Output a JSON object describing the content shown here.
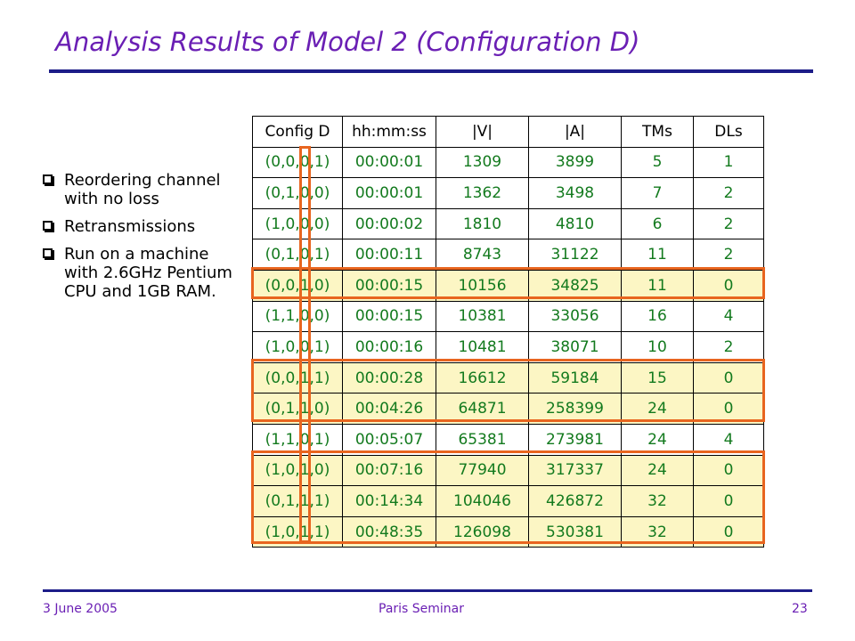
{
  "slide": {
    "title": "Analysis Results of Model 2 (Configuration D)",
    "bullets": [
      "Reordering channel with no loss",
      "Retransmissions",
      "Run on a machine with 2.6GHz Pentium CPU and 1GB RAM."
    ],
    "footer": {
      "date": "3 June 2005",
      "event": "Paris Seminar",
      "page": "23"
    }
  },
  "table": {
    "headers": [
      "Config D",
      "hh:mm:ss",
      "|V|",
      "|A|",
      "TMs",
      "DLs"
    ],
    "rows": [
      [
        "(0,0,0,1)",
        "00:00:01",
        "1309",
        "3899",
        "5",
        "1"
      ],
      [
        "(0,1,0,0)",
        "00:00:01",
        "1362",
        "3498",
        "7",
        "2"
      ],
      [
        "(1,0,0,0)",
        "00:00:02",
        "1810",
        "4810",
        "6",
        "2"
      ],
      [
        "(0,1,0,1)",
        "00:00:11",
        "8743",
        "31122",
        "11",
        "2"
      ],
      [
        "(0,0,1,0)",
        "00:00:15",
        "10156",
        "34825",
        "11",
        "0"
      ],
      [
        "(1,1,0,0)",
        "00:00:15",
        "10381",
        "33056",
        "16",
        "4"
      ],
      [
        "(1,0,0,1)",
        "00:00:16",
        "10481",
        "38071",
        "10",
        "2"
      ],
      [
        "(0,0,1,1)",
        "00:00:28",
        "16612",
        "59184",
        "15",
        "0"
      ],
      [
        "(0,1,1,0)",
        "00:04:26",
        "64871",
        "258399",
        "24",
        "0"
      ],
      [
        "(1,1,0,1)",
        "00:05:07",
        "65381",
        "273981",
        "24",
        "4"
      ],
      [
        "(1,0,1,0)",
        "00:07:16",
        "77940",
        "317337",
        "24",
        "0"
      ],
      [
        "(0,1,1,1)",
        "00:14:34",
        "104046",
        "426872",
        "32",
        "0"
      ],
      [
        "(1,0,1,1)",
        "00:48:35",
        "126098",
        "530381",
        "32",
        "0"
      ]
    ],
    "highlighted_rows": [
      4,
      7,
      8,
      10,
      11,
      12
    ]
  },
  "colors": {
    "title": "#6a1fb4",
    "rule": "#1c1c88",
    "cell_text": "#137a1e",
    "highlight_fill": "#fcf6c4",
    "highlight_border": "#e8651f"
  }
}
